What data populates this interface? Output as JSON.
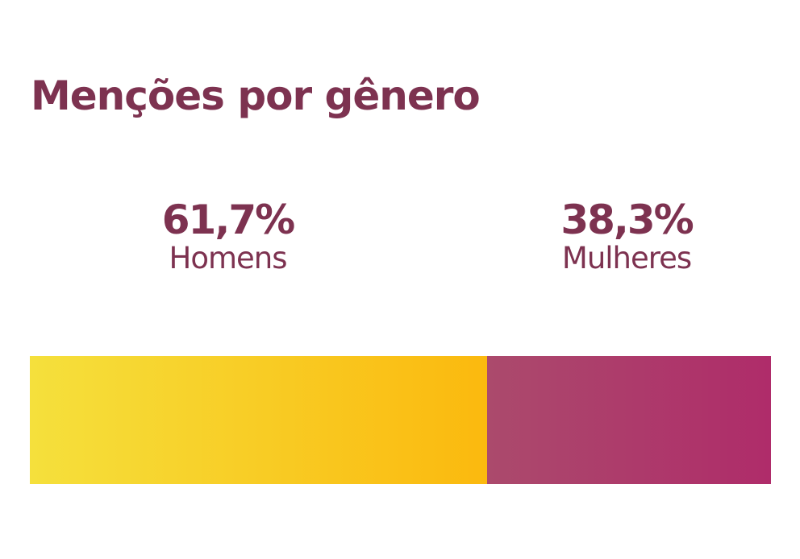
{
  "chart_data": {
    "type": "bar",
    "title": "Menções por gênero",
    "categories": [
      "Homens",
      "Mulheres"
    ],
    "values": [
      61.7,
      38.3
    ],
    "value_labels": [
      "61,7%",
      "38,3%"
    ],
    "unit": "%",
    "stacked": true,
    "orientation": "horizontal",
    "colors": {
      "Homens": [
        "#f5e03c",
        "#fbb90e"
      ],
      "Mulheres": [
        "#ab4a6c",
        "#af2c6a"
      ]
    },
    "text_color": "#7d3250",
    "grid": false,
    "legend": "labels above bar"
  }
}
